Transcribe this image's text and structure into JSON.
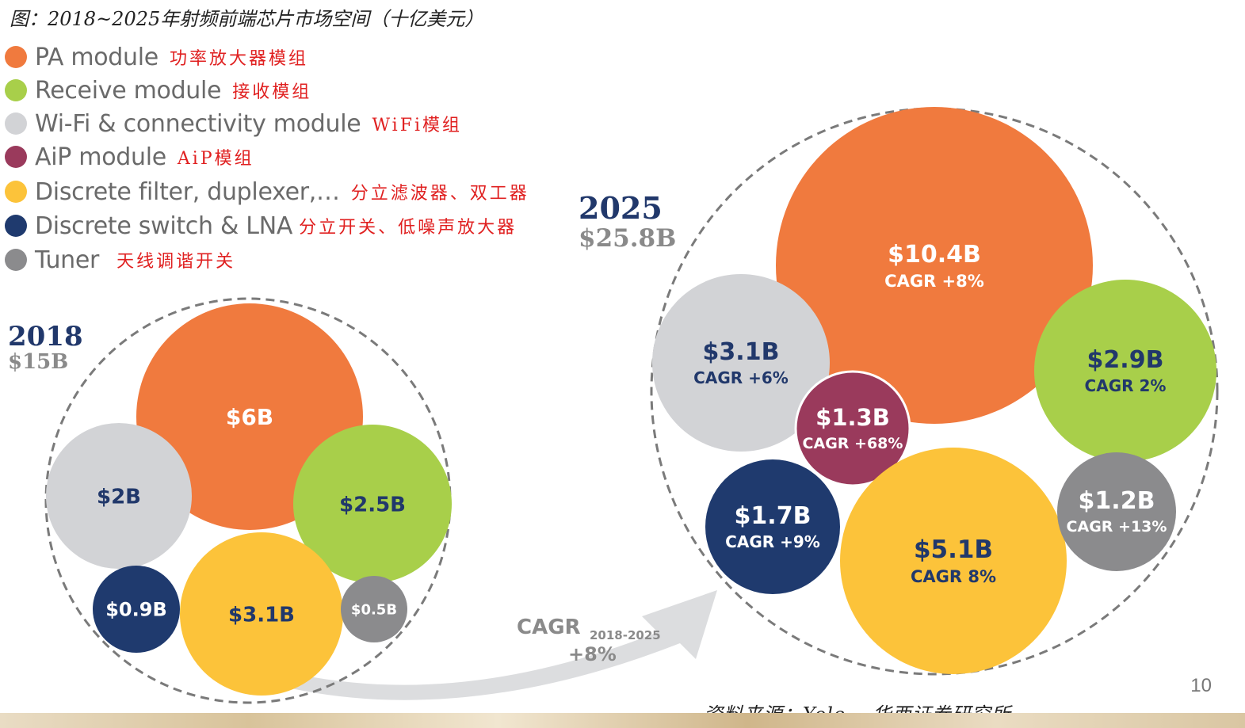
{
  "caption": "图：2018~2025年射频前端芯片市场空间（十亿美元）",
  "legend": [
    {
      "en": "PA module",
      "cn": "功率放大器模组",
      "color": "#f07a3e"
    },
    {
      "en": "Receive module",
      "cn": "接收模组",
      "color": "#a8cf4a"
    },
    {
      "en": "Wi-Fi & connectivity module",
      "cn": "WiFi模组",
      "color": "#d2d3d6"
    },
    {
      "en": "AiP module",
      "cn": "AiP模组",
      "color": "#9a3a5c"
    },
    {
      "en": "Discrete filter, duplexer,…",
      "cn": "分立滤波器、双工器",
      "color": "#fcc33a"
    },
    {
      "en": "Discrete switch & LNA",
      "cn": "分立开关、低噪声放大器",
      "color": "#1f3a6e"
    },
    {
      "en": "Tuner",
      "cn": "天线调谐开关",
      "color": "#8b8b8d"
    }
  ],
  "chart_data": {
    "type": "bubble",
    "title": "图：2018~2025年射频前端芯片市场空间（十亿美元）",
    "unit": "十亿美元",
    "years": [
      {
        "year": "2018",
        "total_label": "$15B",
        "segments": [
          {
            "name": "PA module",
            "value": 6,
            "label": "$6B",
            "cagr": ""
          },
          {
            "name": "Wi-Fi & connectivity module",
            "value": 2,
            "label": "$2B",
            "cagr": ""
          },
          {
            "name": "Receive module",
            "value": 2.5,
            "label": "$2.5B",
            "cagr": ""
          },
          {
            "name": "Discrete switch & LNA",
            "value": 0.9,
            "label": "$0.9B",
            "cagr": ""
          },
          {
            "name": "Discrete filter, duplexer,…",
            "value": 3.1,
            "label": "$3.1B",
            "cagr": ""
          },
          {
            "name": "Tuner",
            "value": 0.5,
            "label": "$0.5B",
            "cagr": ""
          }
        ]
      },
      {
        "year": "2025",
        "total_label": "$25.8B",
        "segments": [
          {
            "name": "PA module",
            "value": 10.4,
            "label": "$10.4B",
            "cagr": "CAGR +8%"
          },
          {
            "name": "Wi-Fi & connectivity module",
            "value": 3.1,
            "label": "$3.1B",
            "cagr": "CAGR +6%"
          },
          {
            "name": "Receive module",
            "value": 2.9,
            "label": "$2.9B",
            "cagr": "CAGR 2%"
          },
          {
            "name": "AiP module",
            "value": 1.3,
            "label": "$1.3B",
            "cagr": "CAGR +68%"
          },
          {
            "name": "Discrete switch & LNA",
            "value": 1.7,
            "label": "$1.7B",
            "cagr": "CAGR +9%"
          },
          {
            "name": "Discrete filter, duplexer,…",
            "value": 5.1,
            "label": "$5.1B",
            "cagr": "CAGR 8%"
          },
          {
            "name": "Tuner",
            "value": 1.2,
            "label": "$1.2B",
            "cagr": "CAGR +13%"
          }
        ]
      }
    ],
    "overall_cagr": {
      "label": "CAGR",
      "period": "2018-2025",
      "value": "+8%"
    }
  },
  "page_number": "10",
  "source": "资料来源：Yole ，华西证券研究所"
}
